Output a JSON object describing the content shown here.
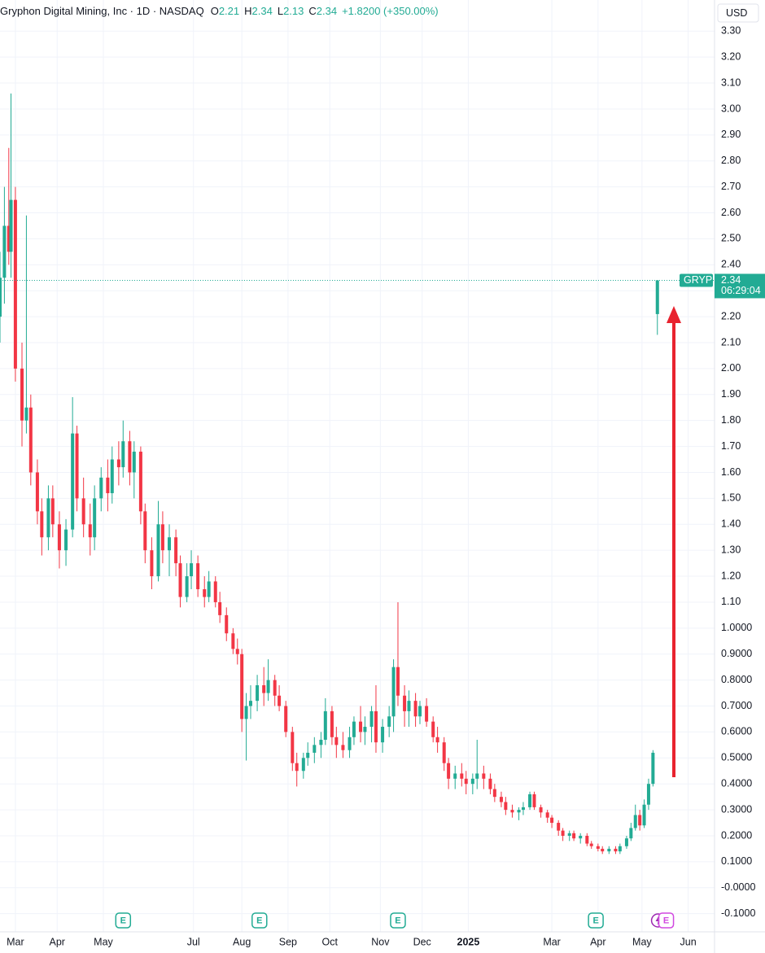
{
  "chart_data": {
    "type": "candlestick",
    "title": "Gryphon Digital Mining, Inc · 1D · NASDAQ",
    "ohlc_labels": [
      "O",
      "H",
      "L",
      "C"
    ],
    "change": "+1.8200 (+350.00%)",
    "currency": "USD",
    "symbol": "GRYP",
    "countdown": "06:29:04",
    "up_color": "#22ab94",
    "down_color": "#f23645",
    "grid": true,
    "xlim": [
      0,
      325
    ],
    "xticks": [
      {
        "value": 7,
        "label": "Mar"
      },
      {
        "value": 26,
        "label": "Apr"
      },
      {
        "value": 47,
        "label": "May"
      },
      {
        "value": 88,
        "label": "Jul"
      },
      {
        "value": 110,
        "label": "Aug"
      },
      {
        "value": 131,
        "label": "Sep"
      },
      {
        "value": 150,
        "label": "Oct"
      },
      {
        "value": 173,
        "label": "Nov"
      },
      {
        "value": 192,
        "label": "Dec"
      },
      {
        "value": 213,
        "label": "2025"
      },
      {
        "value": 251,
        "label": "Mar"
      },
      {
        "value": 272,
        "label": "Apr"
      },
      {
        "value": 292,
        "label": "May"
      },
      {
        "value": 313,
        "label": "Jun"
      }
    ],
    "ylim": [
      -0.17,
      3.42
    ],
    "yticks": [
      {
        "value": 3.3,
        "label": "3.30"
      },
      {
        "value": 3.2,
        "label": "3.20"
      },
      {
        "value": 3.1,
        "label": "3.10"
      },
      {
        "value": 3.0,
        "label": "3.00"
      },
      {
        "value": 2.9,
        "label": "2.90"
      },
      {
        "value": 2.8,
        "label": "2.80"
      },
      {
        "value": 2.7,
        "label": "2.70"
      },
      {
        "value": 2.6,
        "label": "2.60"
      },
      {
        "value": 2.5,
        "label": "2.50"
      },
      {
        "value": 2.4,
        "label": "2.40"
      },
      {
        "value": 2.3,
        "label": "2.30"
      },
      {
        "value": 2.2,
        "label": "2.20"
      },
      {
        "value": 2.1,
        "label": "2.10"
      },
      {
        "value": 2.0,
        "label": "2.00"
      },
      {
        "value": 1.9,
        "label": "1.90"
      },
      {
        "value": 1.8,
        "label": "1.80"
      },
      {
        "value": 1.7,
        "label": "1.70"
      },
      {
        "value": 1.6,
        "label": "1.60"
      },
      {
        "value": 1.5,
        "label": "1.50"
      },
      {
        "value": 1.4,
        "label": "1.40"
      },
      {
        "value": 1.3,
        "label": "1.30"
      },
      {
        "value": 1.2,
        "label": "1.20"
      },
      {
        "value": 1.1,
        "label": "1.10"
      },
      {
        "value": 1.0,
        "label": "1.0000"
      },
      {
        "value": 0.9,
        "label": "0.9000"
      },
      {
        "value": 0.8,
        "label": "0.8000"
      },
      {
        "value": 0.7,
        "label": "0.7000"
      },
      {
        "value": 0.6,
        "label": "0.6000"
      },
      {
        "value": 0.5,
        "label": "0.5000"
      },
      {
        "value": 0.4,
        "label": "0.4000"
      },
      {
        "value": 0.3,
        "label": "0.3000"
      },
      {
        "value": 0.2,
        "label": "0.2000"
      },
      {
        "value": 0.1,
        "label": "0.1000"
      },
      {
        "value": 0,
        "label": "-0.0000"
      },
      {
        "value": -0.1,
        "label": "-0.1000"
      }
    ],
    "events": {
      "label": "E",
      "x": [
        56,
        118,
        181,
        271,
        303
      ]
    },
    "x": [
      0,
      2,
      4,
      5,
      7,
      10,
      12,
      14,
      17,
      19,
      22,
      24,
      27,
      30,
      33,
      35,
      38,
      41,
      43,
      46,
      49,
      51,
      54,
      56,
      59,
      61,
      64,
      66,
      69,
      72,
      74,
      77,
      80,
      82,
      85,
      87,
      90,
      93,
      95,
      98,
      100,
      103,
      106,
      108,
      110,
      112,
      114,
      117,
      120,
      122,
      125,
      127,
      130,
      133,
      135,
      138,
      140,
      143,
      146,
      148,
      151,
      153,
      156,
      159,
      161,
      164,
      166,
      169,
      171,
      174,
      177,
      179,
      181,
      184,
      186,
      189,
      191,
      194,
      197,
      199,
      202,
      204,
      207,
      210,
      212,
      215,
      217,
      220,
      223,
      225,
      228,
      230,
      233,
      236,
      238,
      241,
      243,
      246,
      249,
      251,
      254,
      256,
      259,
      261,
      264,
      267,
      269,
      272,
      274,
      277,
      280,
      282,
      285,
      287,
      289,
      291,
      293,
      295,
      297,
      299
    ],
    "open": [
      2.2,
      2.35,
      2.55,
      2.45,
      2.65,
      2.0,
      1.8,
      1.85,
      1.6,
      1.45,
      1.35,
      1.5,
      1.4,
      1.3,
      1.38,
      1.75,
      1.5,
      1.4,
      1.35,
      1.5,
      1.58,
      1.52,
      1.65,
      1.62,
      1.72,
      1.6,
      1.68,
      1.45,
      1.3,
      1.2,
      1.4,
      1.3,
      1.35,
      1.25,
      1.12,
      1.2,
      1.25,
      1.15,
      1.12,
      1.18,
      1.1,
      1.05,
      0.98,
      0.92,
      0.9,
      0.65,
      0.7,
      0.72,
      0.78,
      0.75,
      0.8,
      0.74,
      0.7,
      0.6,
      0.48,
      0.45,
      0.5,
      0.52,
      0.55,
      0.57,
      0.68,
      0.58,
      0.55,
      0.53,
      0.58,
      0.64,
      0.6,
      0.62,
      0.68,
      0.56,
      0.62,
      0.66,
      0.85,
      0.74,
      0.68,
      0.72,
      0.66,
      0.7,
      0.64,
      0.58,
      0.56,
      0.48,
      0.42,
      0.44,
      0.42,
      0.4,
      0.42,
      0.44,
      0.42,
      0.38,
      0.35,
      0.33,
      0.3,
      0.29,
      0.3,
      0.31,
      0.36,
      0.31,
      0.29,
      0.27,
      0.25,
      0.22,
      0.2,
      0.21,
      0.19,
      0.2,
      0.17,
      0.16,
      0.15,
      0.14,
      0.15,
      0.14,
      0.16,
      0.19,
      0.23,
      0.28,
      0.24,
      0.32,
      0.4,
      2.21
    ],
    "high": [
      2.45,
      2.7,
      2.85,
      3.06,
      2.7,
      2.1,
      2.59,
      1.9,
      1.65,
      1.5,
      1.55,
      1.55,
      1.45,
      1.42,
      1.89,
      1.78,
      1.58,
      1.48,
      1.55,
      1.62,
      1.65,
      1.7,
      1.72,
      1.8,
      1.76,
      1.72,
      1.7,
      1.48,
      1.35,
      1.49,
      1.45,
      1.4,
      1.38,
      1.28,
      1.25,
      1.3,
      1.28,
      1.2,
      1.22,
      1.2,
      1.14,
      1.08,
      1.0,
      0.96,
      0.92,
      0.75,
      0.78,
      0.82,
      0.85,
      0.88,
      0.82,
      0.78,
      0.72,
      0.62,
      0.52,
      0.52,
      0.56,
      0.58,
      0.6,
      0.73,
      0.7,
      0.62,
      0.6,
      0.62,
      0.66,
      0.7,
      0.66,
      0.7,
      0.78,
      0.65,
      0.7,
      0.88,
      1.1,
      0.78,
      0.76,
      0.75,
      0.72,
      0.73,
      0.66,
      0.62,
      0.58,
      0.5,
      0.47,
      0.48,
      0.45,
      0.44,
      0.57,
      0.47,
      0.44,
      0.4,
      0.37,
      0.35,
      0.32,
      0.31,
      0.33,
      0.37,
      0.37,
      0.32,
      0.3,
      0.28,
      0.26,
      0.23,
      0.22,
      0.22,
      0.21,
      0.21,
      0.18,
      0.17,
      0.16,
      0.16,
      0.16,
      0.17,
      0.2,
      0.25,
      0.32,
      0.3,
      0.34,
      0.42,
      0.53,
      2.34
    ],
    "low": [
      2.1,
      2.25,
      2.4,
      2.35,
      1.95,
      1.7,
      1.75,
      1.55,
      1.4,
      1.28,
      1.3,
      1.35,
      1.23,
      1.24,
      1.35,
      1.45,
      1.35,
      1.28,
      1.3,
      1.45,
      1.45,
      1.48,
      1.55,
      1.58,
      1.55,
      1.5,
      1.4,
      1.25,
      1.15,
      1.18,
      1.25,
      1.2,
      1.2,
      1.08,
      1.1,
      1.15,
      1.12,
      1.08,
      1.1,
      1.08,
      1.02,
      0.95,
      0.9,
      0.86,
      0.6,
      0.49,
      0.65,
      0.68,
      0.7,
      0.72,
      0.7,
      0.68,
      0.58,
      0.45,
      0.39,
      0.42,
      0.47,
      0.48,
      0.5,
      0.55,
      0.55,
      0.5,
      0.5,
      0.5,
      0.55,
      0.56,
      0.55,
      0.56,
      0.52,
      0.52,
      0.58,
      0.6,
      0.7,
      0.62,
      0.62,
      0.62,
      0.63,
      0.62,
      0.56,
      0.52,
      0.45,
      0.38,
      0.38,
      0.39,
      0.36,
      0.36,
      0.38,
      0.38,
      0.36,
      0.33,
      0.31,
      0.28,
      0.27,
      0.26,
      0.28,
      0.3,
      0.3,
      0.27,
      0.25,
      0.23,
      0.2,
      0.18,
      0.18,
      0.18,
      0.17,
      0.16,
      0.15,
      0.14,
      0.13,
      0.13,
      0.13,
      0.13,
      0.15,
      0.18,
      0.22,
      0.22,
      0.23,
      0.3,
      0.39,
      2.13
    ],
    "close": [
      2.35,
      2.55,
      2.45,
      2.65,
      2.0,
      1.8,
      1.85,
      1.6,
      1.45,
      1.35,
      1.5,
      1.4,
      1.3,
      1.38,
      1.75,
      1.5,
      1.4,
      1.35,
      1.5,
      1.58,
      1.52,
      1.65,
      1.62,
      1.72,
      1.6,
      1.68,
      1.45,
      1.3,
      1.2,
      1.4,
      1.3,
      1.35,
      1.25,
      1.12,
      1.2,
      1.25,
      1.15,
      1.12,
      1.18,
      1.1,
      1.05,
      0.98,
      0.92,
      0.9,
      0.65,
      0.7,
      0.72,
      0.78,
      0.75,
      0.8,
      0.74,
      0.7,
      0.6,
      0.48,
      0.45,
      0.5,
      0.52,
      0.55,
      0.57,
      0.68,
      0.58,
      0.55,
      0.53,
      0.58,
      0.64,
      0.6,
      0.62,
      0.68,
      0.56,
      0.62,
      0.66,
      0.85,
      0.74,
      0.68,
      0.72,
      0.66,
      0.7,
      0.64,
      0.58,
      0.56,
      0.48,
      0.42,
      0.44,
      0.42,
      0.4,
      0.42,
      0.44,
      0.42,
      0.38,
      0.35,
      0.33,
      0.3,
      0.29,
      0.3,
      0.31,
      0.36,
      0.31,
      0.29,
      0.27,
      0.25,
      0.22,
      0.2,
      0.21,
      0.19,
      0.2,
      0.17,
      0.16,
      0.15,
      0.14,
      0.15,
      0.14,
      0.16,
      0.19,
      0.23,
      0.28,
      0.24,
      0.32,
      0.4,
      0.52,
      2.34
    ]
  }
}
